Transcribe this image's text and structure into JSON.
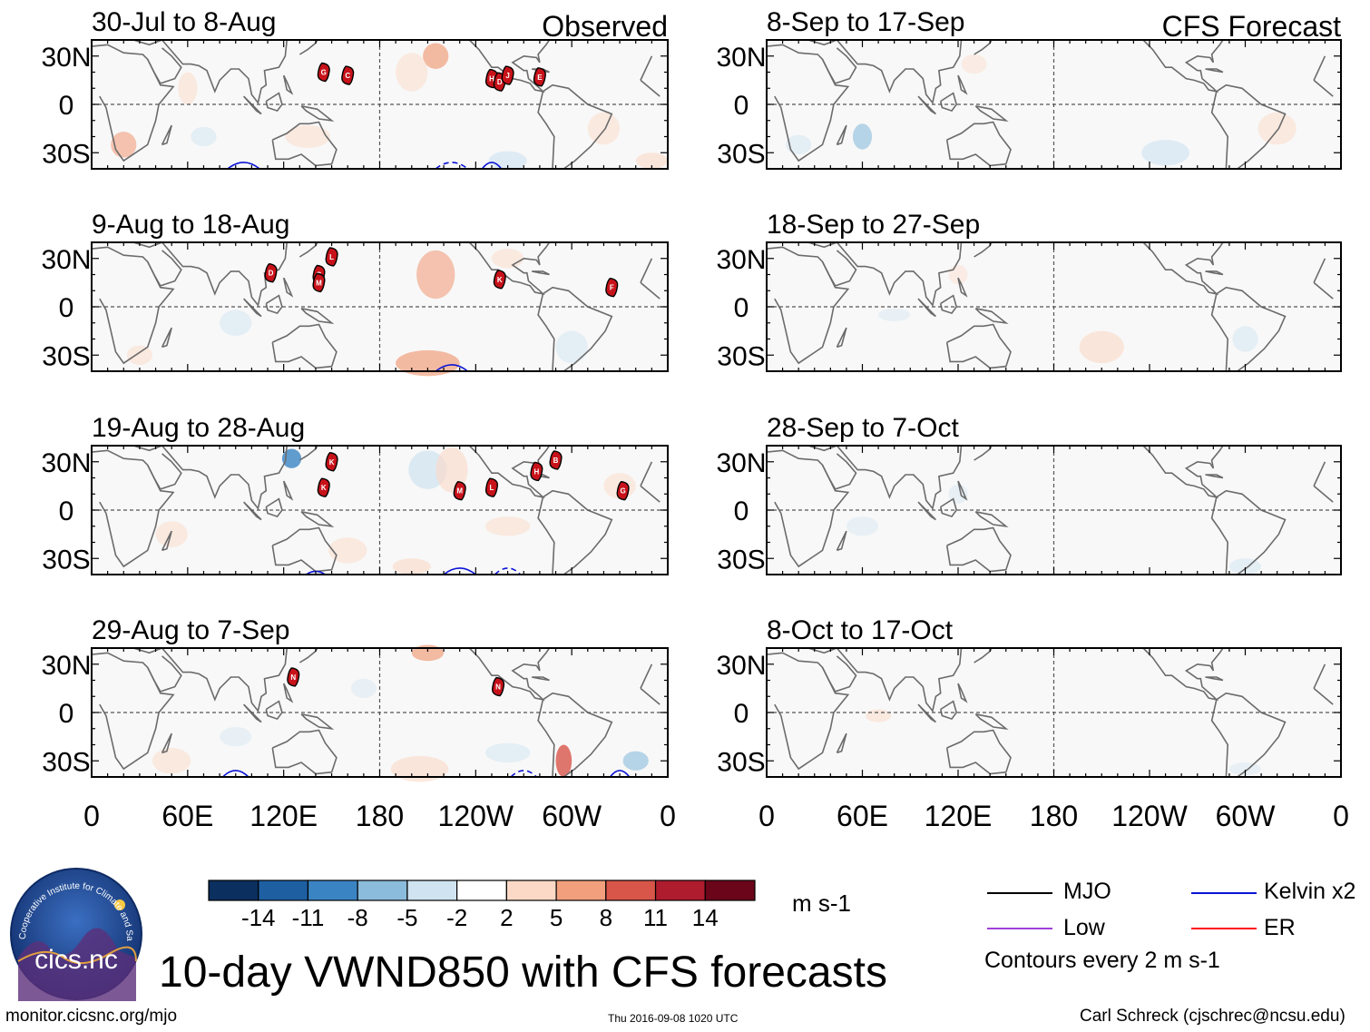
{
  "chart_data": {
    "type": "heatmap",
    "variable": "10-day VWND850 with CFS forecasts",
    "units": "m s-1",
    "colorbar": {
      "ticks": [
        -14,
        -11,
        -8,
        -5,
        -2,
        2,
        5,
        8,
        11,
        14
      ],
      "colors": [
        "#0b2f5e",
        "#1e5fa2",
        "#3b84c4",
        "#8bbcdc",
        "#cfe3f1",
        "#ffffff",
        "#fcd9c6",
        "#f19f7d",
        "#d8554a",
        "#ae1c2e",
        "#6b0519"
      ]
    },
    "x_axis": {
      "ticks": [
        "0",
        "60E",
        "120E",
        "180",
        "120W",
        "60W",
        "0"
      ]
    },
    "y_axis": {
      "ticks": [
        "30N",
        "0",
        "30S"
      ],
      "range_deg": [
        -40,
        40
      ]
    },
    "columns": [
      {
        "label": "Observed"
      },
      {
        "label": "CFS Forecast"
      }
    ],
    "panels": [
      {
        "period": "30-Jul to 8-Aug",
        "column": "Observed",
        "storms": [
          {
            "id": "G",
            "lon": 145,
            "lat": 20
          },
          {
            "id": "C",
            "lon": 160,
            "lat": 18
          },
          {
            "id": "H",
            "lon": -110,
            "lat": 16
          },
          {
            "id": "D",
            "lon": -105,
            "lat": 14
          },
          {
            "id": "J",
            "lon": -100,
            "lat": 18
          },
          {
            "id": "E",
            "lon": -80,
            "lat": 17
          }
        ],
        "kelvin_contours": 3
      },
      {
        "period": "8-Sep to 17-Sep",
        "column": "CFS Forecast",
        "storms": []
      },
      {
        "period": "9-Aug to 18-Aug",
        "column": "Observed",
        "storms": [
          {
            "id": "D",
            "lon": 112,
            "lat": 21
          },
          {
            "id": "L",
            "lon": 150,
            "lat": 31
          },
          {
            "id": "G",
            "lon": 142,
            "lat": 20
          },
          {
            "id": "M",
            "lon": 142,
            "lat": 15
          },
          {
            "id": "K",
            "lon": -105,
            "lat": 17
          },
          {
            "id": "F",
            "lon": -35,
            "lat": 12
          }
        ],
        "kelvin_contours": 1
      },
      {
        "period": "18-Sep to 27-Sep",
        "column": "CFS Forecast",
        "storms": []
      },
      {
        "period": "19-Aug to 28-Aug",
        "column": "Observed",
        "storms": [
          {
            "id": "K",
            "lon": 150,
            "lat": 30
          },
          {
            "id": "K",
            "lon": 145,
            "lat": 14
          },
          {
            "id": "M",
            "lon": -130,
            "lat": 12
          },
          {
            "id": "L",
            "lon": -110,
            "lat": 14
          },
          {
            "id": "H",
            "lon": -82,
            "lat": 24
          },
          {
            "id": "B",
            "lon": -70,
            "lat": 31
          },
          {
            "id": "G",
            "lon": -28,
            "lat": 12
          }
        ],
        "kelvin_contours": 3
      },
      {
        "period": "28-Sep to 7-Oct",
        "column": "CFS Forecast",
        "storms": []
      },
      {
        "period": "29-Aug to 7-Sep",
        "column": "Observed",
        "storms": [
          {
            "id": "N",
            "lon": 126,
            "lat": 22
          },
          {
            "id": "N",
            "lon": -106,
            "lat": 16
          }
        ],
        "kelvin_contours": 3
      },
      {
        "period": "8-Oct to 17-Oct",
        "column": "CFS Forecast",
        "storms": []
      }
    ],
    "legend": [
      {
        "label": "MJO",
        "color": "#000000"
      },
      {
        "label": "Kelvin x2",
        "color": "#0a14d6"
      },
      {
        "label": "Low",
        "color": "#a040d8"
      },
      {
        "label": "ER",
        "color": "#ff1010"
      }
    ],
    "contour_note": "Contours every 2 m s-1"
  },
  "title": "10-day VWND850 with CFS forecasts",
  "footer": {
    "url": "monitor.cicsnc.org/mjo",
    "timestamp": "Thu 2016-09-08 1020 UTC",
    "author": "Carl Schreck (cjschrec@ncsu.edu)"
  },
  "logo": {
    "name": "cics.nc",
    "arc_text": "Cooperative Institute for Climate and Satellites"
  }
}
